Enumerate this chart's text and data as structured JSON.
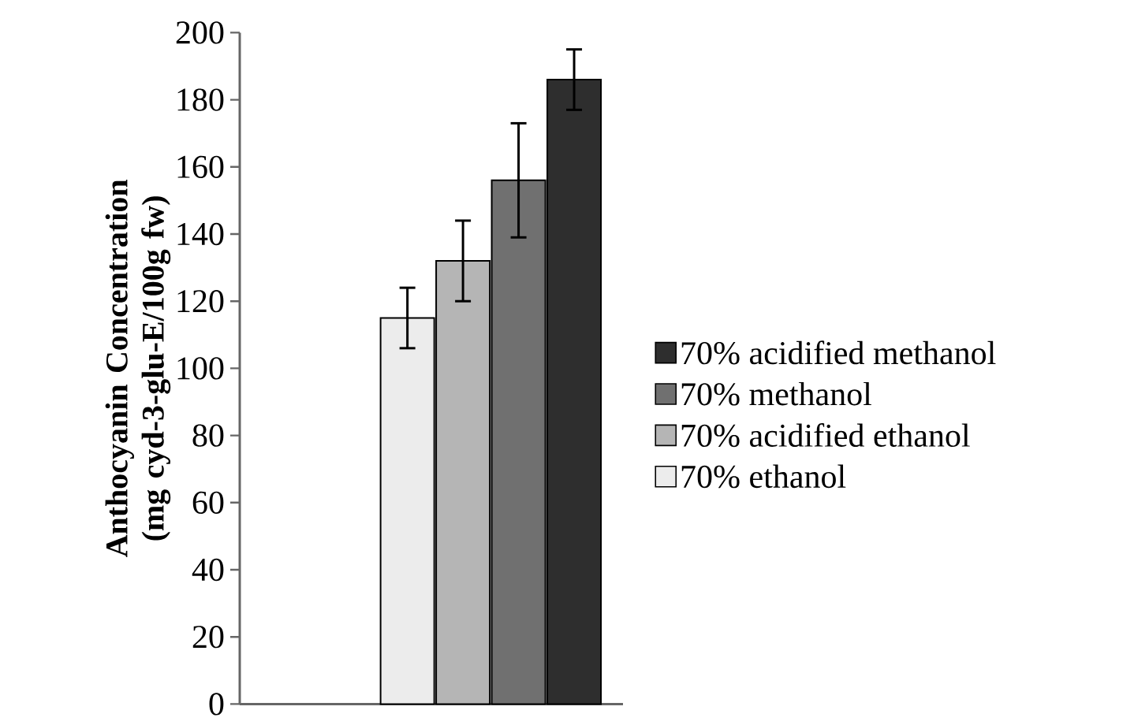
{
  "chart_data": {
    "type": "bar",
    "ylabel": "Anthocyanin Concentration (mg cyd-3-glu-E/100g fw)",
    "categories": [
      null
    ],
    "series": [
      {
        "name": "70% ethanol",
        "color": "#ececec",
        "values": [
          115
        ],
        "errors": [
          9
        ]
      },
      {
        "name": "70% acidified ethanol",
        "color": "#b5b5b5",
        "values": [
          132
        ],
        "errors": [
          12
        ]
      },
      {
        "name": "70% methanol",
        "color": "#707070",
        "values": [
          156
        ],
        "errors": [
          17
        ]
      },
      {
        "name": "70% acidified methanol",
        "color": "#2e2e2e",
        "values": [
          186
        ],
        "errors": [
          9
        ]
      }
    ],
    "ylim": [
      0,
      200
    ],
    "yticks": [
      0,
      20,
      40,
      60,
      80,
      100,
      120,
      140,
      160,
      180,
      200
    ],
    "legend": "right",
    "grid": false
  }
}
